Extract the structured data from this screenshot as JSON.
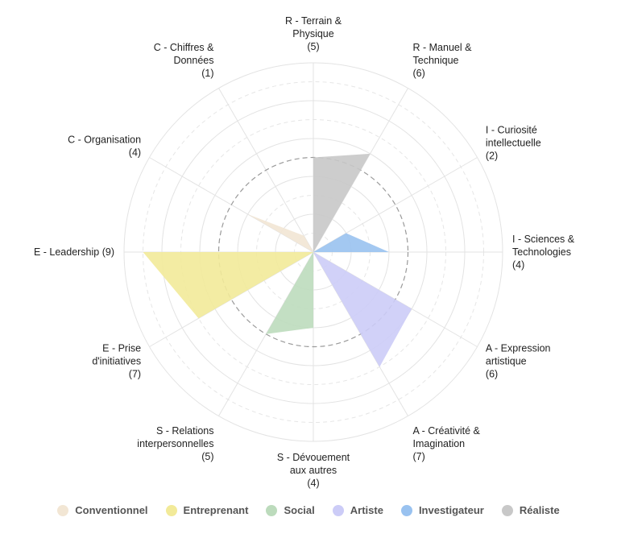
{
  "chart_data": {
    "type": "radar",
    "categories": [
      "R - Terrain & Physique",
      "R - Manuel & Technique",
      "I - Curiosité intellectuelle",
      "I - Sciences & Technologies",
      "A - Expression artistique",
      "A - Créativité & Imagination",
      "S - Dévouement aux autres",
      "S - Relations interpersonnelles",
      "E - Prise d'initiatives",
      "E - Leadership",
      "C - Organisation",
      "C - Chiffres & Données"
    ],
    "category_label_lines": [
      [
        "R - Terrain &",
        "Physique",
        "(5)"
      ],
      [
        "R - Manuel &",
        "Technique",
        "(6)"
      ],
      [
        "I - Curiosité",
        "intellectuelle",
        "(2)"
      ],
      [
        "I - Sciences &",
        "Technologies",
        "(4)"
      ],
      [
        "A - Expression",
        "artistique",
        "(6)"
      ],
      [
        "A - Créativité &",
        "Imagination",
        "(7)"
      ],
      [
        "S - Dévouement",
        "aux autres",
        "(4)"
      ],
      [
        "S - Relations",
        "interpersonnelles",
        "(5)"
      ],
      [
        "E - Prise",
        "d'initiatives",
        "(7)"
      ],
      [
        "E - Leadership (9)"
      ],
      [
        "C - Organisation",
        "(4)"
      ],
      [
        "C - Chiffres &",
        "Données",
        "(1)"
      ]
    ],
    "values": [
      5,
      6,
      2,
      4,
      6,
      7,
      4,
      5,
      7,
      9,
      4,
      1
    ],
    "rmax": 10,
    "reference_circle": 5,
    "series": [
      {
        "name": "Conventionnel",
        "color": "#f2e6d4",
        "indices": [
          10,
          11
        ]
      },
      {
        "name": "Entreprenant",
        "color": "#f2ea99",
        "indices": [
          8,
          9
        ]
      },
      {
        "name": "Social",
        "color": "#bcdbbc",
        "indices": [
          6,
          7
        ]
      },
      {
        "name": "Artiste",
        "color": "#ccccf7",
        "indices": [
          4,
          5
        ]
      },
      {
        "name": "Investigateur",
        "color": "#99c2f0",
        "indices": [
          2,
          3
        ]
      },
      {
        "name": "Réaliste",
        "color": "#c8c8c8",
        "indices": [
          0,
          1
        ]
      }
    ],
    "grid": true,
    "legend_position": "bottom"
  }
}
